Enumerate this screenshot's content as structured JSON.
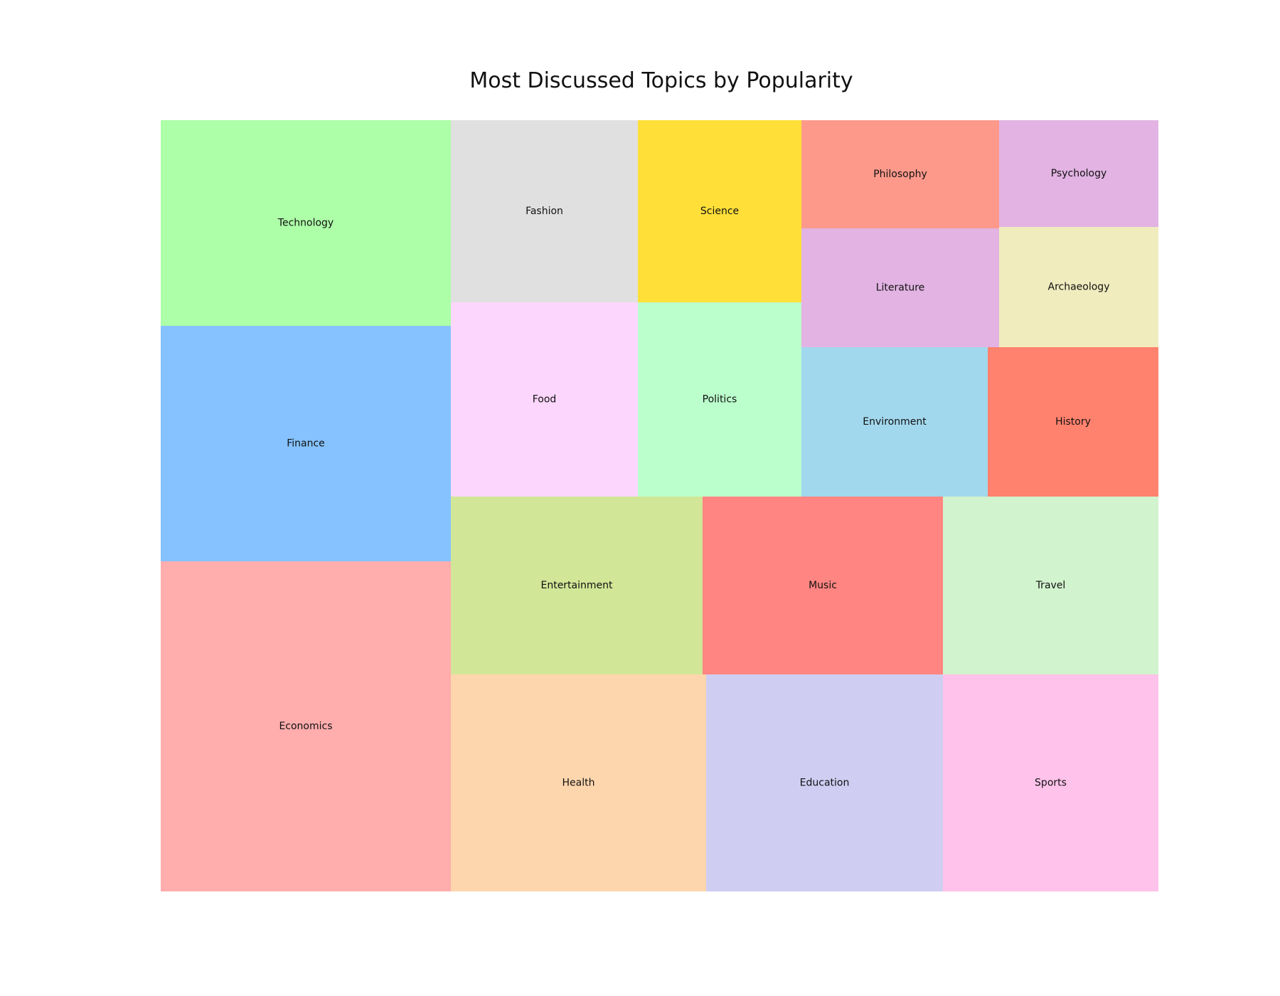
{
  "chart_data": {
    "type": "treemap",
    "title": "Most Discussed Topics by Popularity",
    "items": [
      {
        "label": "Economics",
        "color": "#ffadad"
      },
      {
        "label": "Finance",
        "color": "#85c2ff"
      },
      {
        "label": "Technology",
        "color": "#adffa8"
      },
      {
        "label": "Health",
        "color": "#fed6ad"
      },
      {
        "label": "Education",
        "color": "#cfcdf2"
      },
      {
        "label": "Sports",
        "color": "#ffc2ea"
      },
      {
        "label": "Entertainment",
        "color": "#d1e697"
      },
      {
        "label": "Music",
        "color": "#ff8582"
      },
      {
        "label": "Travel",
        "color": "#d1f3cd"
      },
      {
        "label": "Fashion",
        "color": "#e0e0e0"
      },
      {
        "label": "Food",
        "color": "#fcd6fc"
      },
      {
        "label": "Science",
        "color": "#ffdf38"
      },
      {
        "label": "Politics",
        "color": "#bbffcc"
      },
      {
        "label": "Philosophy",
        "color": "#fd998b"
      },
      {
        "label": "Psychology",
        "color": "#e2b3e3"
      },
      {
        "label": "Literature",
        "color": "#e2b3e3"
      },
      {
        "label": "Archaeology",
        "color": "#f0ecbe"
      },
      {
        "label": "Environment",
        "color": "#a2d8ee"
      },
      {
        "label": "History",
        "color": "#ff826e"
      }
    ]
  }
}
